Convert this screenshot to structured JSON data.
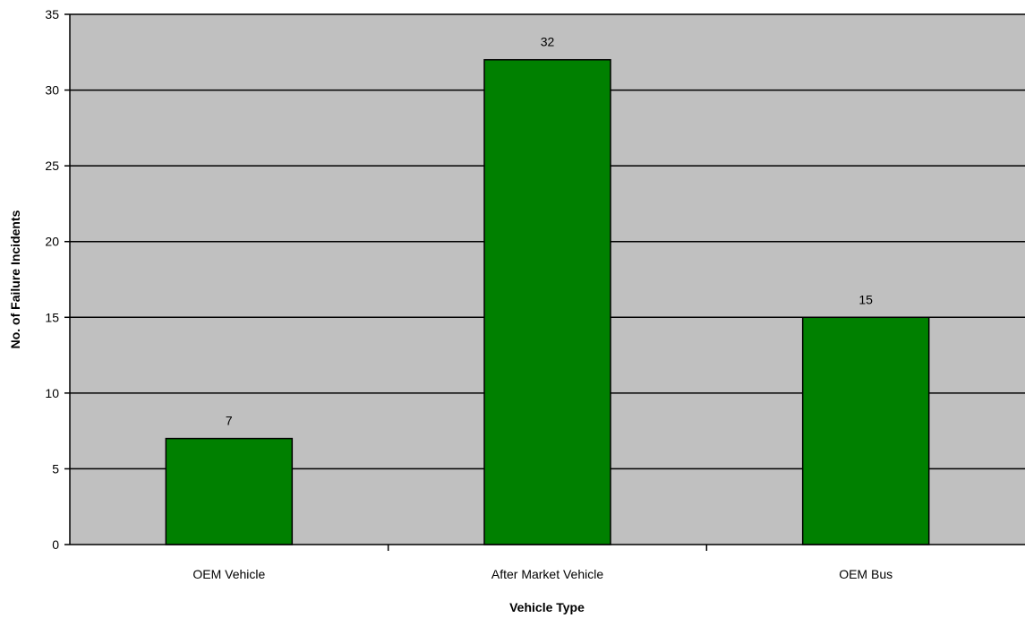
{
  "chart_data": {
    "type": "bar",
    "title": "",
    "xlabel": "Vehicle Type",
    "ylabel": "No. of Failure Incidents",
    "categories": [
      "OEM Vehicle",
      "After Market Vehicle",
      "OEM Bus"
    ],
    "values": [
      7,
      32,
      15
    ],
    "ylim": [
      0,
      35
    ],
    "yticks": [
      0,
      5,
      10,
      15,
      20,
      25,
      30,
      35
    ],
    "ytick_labels": [
      "0",
      "5",
      "10",
      "15",
      "20",
      "25",
      "30",
      "35"
    ],
    "data_labels": [
      "7",
      "32",
      "15"
    ],
    "grid": true,
    "legend": "none",
    "colors": {
      "plot_background": "#c0c0c0",
      "bar_fill": "#008000",
      "bar_stroke": "#000000",
      "gridline": "#000000"
    }
  }
}
